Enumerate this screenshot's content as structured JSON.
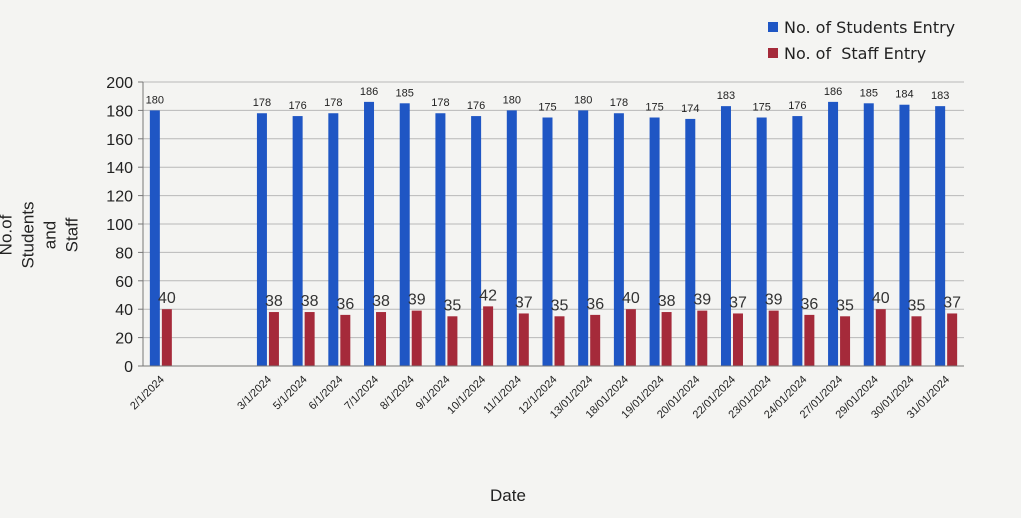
{
  "chart_data": {
    "type": "bar",
    "title": "",
    "xlabel": "Date",
    "ylabel": "No.of Students and Staff",
    "ylim": [
      0,
      200
    ],
    "yticks": [
      0,
      20,
      40,
      60,
      80,
      100,
      120,
      140,
      160,
      180,
      200
    ],
    "grid": true,
    "legend_position": "top-right",
    "categories": [
      "2/1/2024",
      "",
      "",
      "3/1/2024",
      "5/1/2024",
      "6/1/2024",
      "7/1/2024",
      "8/1/2024",
      "9/1/2024",
      "10/1/2024",
      "11/1/2024",
      "12/1/2024",
      "13/01/2024",
      "18/01/2024",
      "19/01/2024",
      "20/01/2024",
      "22/01/2024",
      "23/01/2024",
      "24/01/2024",
      "27/01/2024",
      "29/01/2024",
      "30/01/2024",
      "31/01/2024"
    ],
    "series": [
      {
        "name": "No. of Students Entry",
        "color": "#1f56c4",
        "values": [
          180,
          null,
          null,
          178,
          176,
          178,
          186,
          185,
          178,
          176,
          180,
          175,
          180,
          178,
          175,
          174,
          183,
          175,
          176,
          186,
          185,
          184,
          183
        ]
      },
      {
        "name": "No. of  Staff Entry",
        "color": "#a52a3a",
        "values": [
          40,
          null,
          null,
          38,
          38,
          36,
          38,
          39,
          35,
          42,
          37,
          35,
          36,
          40,
          38,
          39,
          37,
          39,
          36,
          35,
          40,
          35,
          37
        ]
      }
    ]
  }
}
